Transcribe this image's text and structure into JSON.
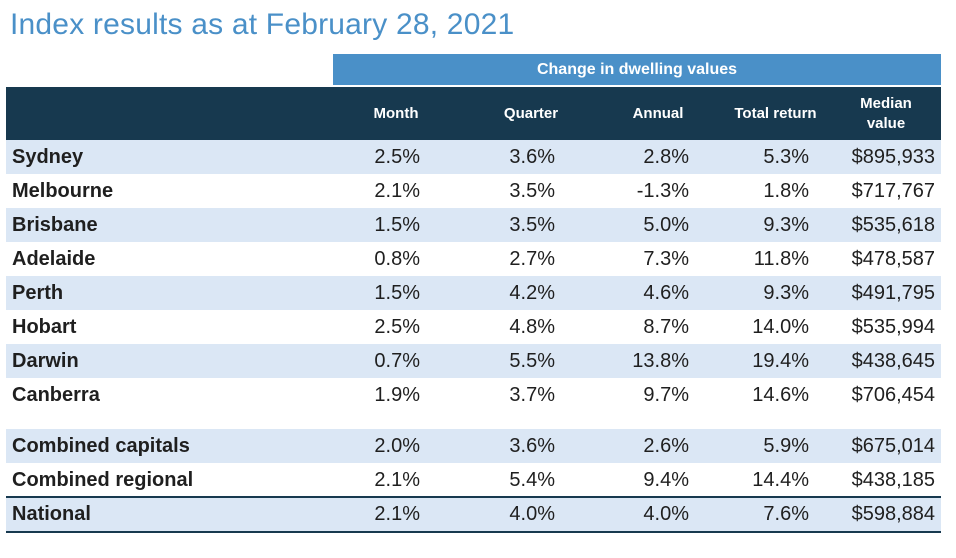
{
  "title": "Index results as at February 28, 2021",
  "group_header": "Change in dwelling values",
  "columns": {
    "month": "Month",
    "quarter": "Quarter",
    "annual": "Annual",
    "total_return": "Total return",
    "median_value_line1": "Median",
    "median_value_line2": "value"
  },
  "rows": [
    {
      "name": "Sydney",
      "month": "2.5%",
      "quarter": "3.6%",
      "annual": "2.8%",
      "total_return": "5.3%",
      "median": "$895,933"
    },
    {
      "name": "Melbourne",
      "month": "2.1%",
      "quarter": "3.5%",
      "annual": "-1.3%",
      "total_return": "1.8%",
      "median": "$717,767"
    },
    {
      "name": "Brisbane",
      "month": "1.5%",
      "quarter": "3.5%",
      "annual": "5.0%",
      "total_return": "9.3%",
      "median": "$535,618"
    },
    {
      "name": "Adelaide",
      "month": "0.8%",
      "quarter": "2.7%",
      "annual": "7.3%",
      "total_return": "11.8%",
      "median": "$478,587"
    },
    {
      "name": "Perth",
      "month": "1.5%",
      "quarter": "4.2%",
      "annual": "4.6%",
      "total_return": "9.3%",
      "median": "$491,795"
    },
    {
      "name": "Hobart",
      "month": "2.5%",
      "quarter": "4.8%",
      "annual": "8.7%",
      "total_return": "14.0%",
      "median": "$535,994"
    },
    {
      "name": "Darwin",
      "month": "0.7%",
      "quarter": "5.5%",
      "annual": "13.8%",
      "total_return": "19.4%",
      "median": "$438,645"
    },
    {
      "name": "Canberra",
      "month": "1.9%",
      "quarter": "3.7%",
      "annual": "9.7%",
      "total_return": "14.6%",
      "median": "$706,454"
    },
    {
      "name": "Combined capitals",
      "month": "2.0%",
      "quarter": "3.6%",
      "annual": "2.6%",
      "total_return": "5.9%",
      "median": "$675,014"
    },
    {
      "name": "Combined regional",
      "month": "2.1%",
      "quarter": "5.4%",
      "annual": "9.4%",
      "total_return": "14.4%",
      "median": "$438,185"
    },
    {
      "name": "National",
      "month": "2.1%",
      "quarter": "4.0%",
      "annual": "4.0%",
      "total_return": "7.6%",
      "median": "$598,884"
    }
  ],
  "colors": {
    "title": "#4a90c8",
    "group_header_bg": "#4a90c8",
    "column_header_bg": "#17394f",
    "row_shade": "#dbe7f5"
  }
}
